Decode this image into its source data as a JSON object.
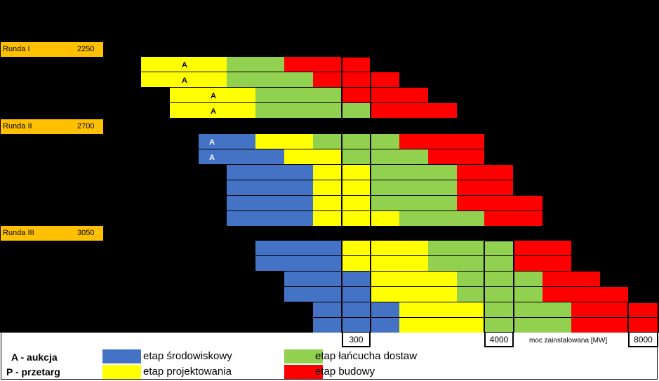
{
  "rounds": [
    {
      "label": "Runda I",
      "capacity": "2250"
    },
    {
      "label": "Runda II",
      "capacity": "2700"
    },
    {
      "label": "Runda III",
      "capacity": "3050"
    }
  ],
  "legend": {
    "abbreviations": [
      "A - aukcja",
      "P - przetarg"
    ],
    "items": [
      {
        "label": "etap środowiskowy",
        "color": "#4472C4"
      },
      {
        "label": "etap projektowania",
        "color": "#FFFF00"
      },
      {
        "label": "etap łańcucha dostaw",
        "color": "#92D050"
      },
      {
        "label": "etap budowy",
        "color": "#FF0000"
      }
    ]
  },
  "chart_data": {
    "type": "gantt",
    "xlabel": "moc zainstalowana [MW]",
    "milestones": [
      "300",
      "4000",
      "8000"
    ],
    "colors": {
      "env": "#4472C4",
      "design": "#FFFF00",
      "supply": "#92D050",
      "build": "#FF0000"
    },
    "rows": [
      {
        "mark": "A",
        "segments": [
          [
            "design",
            201,
            323
          ],
          [
            "supply",
            323,
            405
          ],
          [
            "build",
            405,
            527
          ]
        ]
      },
      {
        "mark": "A",
        "segments": [
          [
            "design",
            201,
            323
          ],
          [
            "supply",
            323,
            446
          ],
          [
            "build",
            446,
            569
          ]
        ]
      },
      {
        "mark": "A",
        "segments": [
          [
            "design",
            242,
            364
          ],
          [
            "supply",
            364,
            487
          ],
          [
            "build",
            487,
            610
          ]
        ]
      },
      {
        "mark": "A",
        "segments": [
          [
            "design",
            242,
            364
          ],
          [
            "supply",
            364,
            527
          ],
          [
            "build",
            527,
            651
          ]
        ]
      },
      {
        "mark": "A",
        "segments": [
          [
            "env",
            283,
            364
          ],
          [
            "design",
            364,
            446
          ],
          [
            "supply",
            446,
            569
          ],
          [
            "build",
            569,
            690
          ]
        ]
      },
      {
        "mark": "A",
        "segments": [
          [
            "env",
            283,
            405
          ],
          [
            "design",
            405,
            487
          ],
          [
            "supply",
            487,
            610
          ],
          [
            "build",
            610,
            690
          ]
        ]
      },
      {
        "mark": "",
        "segments": [
          [
            "env",
            323,
            446
          ],
          [
            "design",
            446,
            527
          ],
          [
            "supply",
            527,
            651
          ],
          [
            "build",
            651,
            731
          ]
        ]
      },
      {
        "mark": "",
        "segments": [
          [
            "env",
            323,
            446
          ],
          [
            "design",
            446,
            527
          ],
          [
            "supply",
            527,
            651
          ],
          [
            "build",
            651,
            731
          ]
        ]
      },
      {
        "mark": "",
        "segments": [
          [
            "env",
            323,
            446
          ],
          [
            "design",
            446,
            527
          ],
          [
            "supply",
            527,
            651
          ],
          [
            "build",
            651,
            773
          ]
        ]
      },
      {
        "mark": "",
        "segments": [
          [
            "env",
            323,
            446
          ],
          [
            "design",
            446,
            569
          ],
          [
            "supply",
            569,
            690
          ],
          [
            "build",
            690,
            773
          ]
        ]
      },
      {
        "mark": "",
        "segments": [
          [
            "env",
            364,
            487
          ],
          [
            "design",
            487,
            610
          ],
          [
            "supply",
            610,
            731
          ],
          [
            "build",
            731,
            814
          ]
        ]
      },
      {
        "mark": "",
        "segments": [
          [
            "env",
            364,
            487
          ],
          [
            "design",
            487,
            610
          ],
          [
            "supply",
            610,
            731
          ],
          [
            "build",
            731,
            814
          ]
        ]
      },
      {
        "mark": "",
        "segments": [
          [
            "env",
            405,
            527
          ],
          [
            "design",
            527,
            651
          ],
          [
            "supply",
            651,
            773
          ],
          [
            "build",
            773,
            855
          ]
        ]
      },
      {
        "mark": "",
        "segments": [
          [
            "env",
            405,
            527
          ],
          [
            "design",
            527,
            651
          ],
          [
            "supply",
            651,
            773
          ],
          [
            "build",
            773,
            895
          ]
        ]
      },
      {
        "mark": "",
        "segments": [
          [
            "env",
            446,
            569
          ],
          [
            "design",
            569,
            690
          ],
          [
            "supply",
            690,
            814
          ],
          [
            "build",
            814,
            937
          ]
        ]
      },
      {
        "mark": "",
        "segments": [
          [
            "env",
            446,
            569
          ],
          [
            "design",
            569,
            690
          ],
          [
            "supply",
            690,
            814
          ],
          [
            "build",
            814,
            937
          ]
        ]
      }
    ]
  }
}
